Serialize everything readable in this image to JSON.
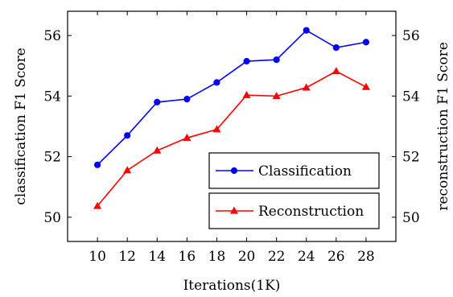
{
  "chart_data": {
    "type": "line",
    "xlabel": "Iterations(1K)",
    "ylabel_left": "classification F1 Score",
    "ylabel_right": "reconstruction F1 Score",
    "x": [
      10,
      12,
      14,
      16,
      18,
      20,
      22,
      24,
      26,
      28
    ],
    "xlim": [
      8,
      30
    ],
    "ylim_left": [
      49.2,
      56.8
    ],
    "ylim_right": [
      49.2,
      56.8
    ],
    "yticks_left": [
      50,
      52,
      54,
      56
    ],
    "yticks_right": [
      50,
      52,
      54,
      56
    ],
    "grid": false,
    "legend_placement": "bottom-right",
    "series": [
      {
        "name": "Classification",
        "axis": "left",
        "color": "#0000ff",
        "marker": "circle",
        "values": [
          51.73,
          52.7,
          53.8,
          53.9,
          54.45,
          55.15,
          55.2,
          56.17,
          55.6,
          55.78
        ]
      },
      {
        "name": "Reconstruction",
        "axis": "right",
        "color": "#ff0000",
        "marker": "triangle",
        "values": [
          50.37,
          51.55,
          52.2,
          52.62,
          52.9,
          54.03,
          54.0,
          54.28,
          54.82,
          54.3
        ]
      }
    ]
  }
}
